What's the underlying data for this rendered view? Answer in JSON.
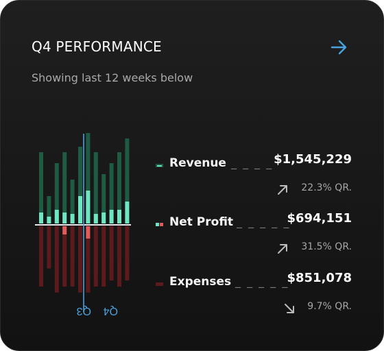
{
  "card": {
    "title": "Q4 PERFORMANCE",
    "subtitle": "Showing last 12 weeks below"
  },
  "colors": {
    "revenue": "#1f5a43",
    "revenue_hi": "#6fe6c2",
    "expenses": "#5c1a1d",
    "expenses_hi": "#e45a5a",
    "accent": "#4aa3df"
  },
  "chart_data": {
    "type": "bar",
    "x_ticks": [
      "Q3",
      "Q4"
    ],
    "series": [
      {
        "values": [
          2.6,
          1.0,
          2.2,
          2.6,
          1.6,
          2.8,
          3.3,
          2.6,
          1.8,
          2.2,
          2.6,
          3.1
        ]
      },
      {
        "values": [
          1.0,
          0.7,
          1.1,
          1.0,
          1.0,
          1.1,
          1.1,
          1.0,
          1.0,
          0.9,
          1.0,
          0.9
        ]
      }
    ],
    "highlights": [
      {
        "positive": [
          0.4,
          0.25,
          0.5,
          0.4,
          0.35,
          1.0,
          1.2,
          0.35,
          0.4,
          0.5,
          0.5,
          0.8
        ]
      },
      {
        "negative": [
          0.0,
          0.0,
          0.0,
          0.3,
          0.0,
          0.0,
          0.45,
          0.0,
          0.0,
          0.0,
          0.0,
          0.0
        ]
      }
    ]
  },
  "metrics": [
    {
      "label": "Revenue",
      "dashes": "_ _ _ _",
      "value": "$1,545,229",
      "change": "22.3% QR.",
      "direction": "up",
      "icon": "arrow-up-right-icon"
    },
    {
      "label": "Net Profit",
      "dashes": "_ _ _ _ _",
      "value": "$694,151",
      "change": "31.5% QR.",
      "direction": "up",
      "icon": "arrow-up-right-icon"
    },
    {
      "label": "Expenses",
      "dashes": "_ _ _ _ _",
      "value": "$851,078",
      "change": "9.7% QR.",
      "direction": "down",
      "icon": "arrow-down-right-icon"
    }
  ]
}
